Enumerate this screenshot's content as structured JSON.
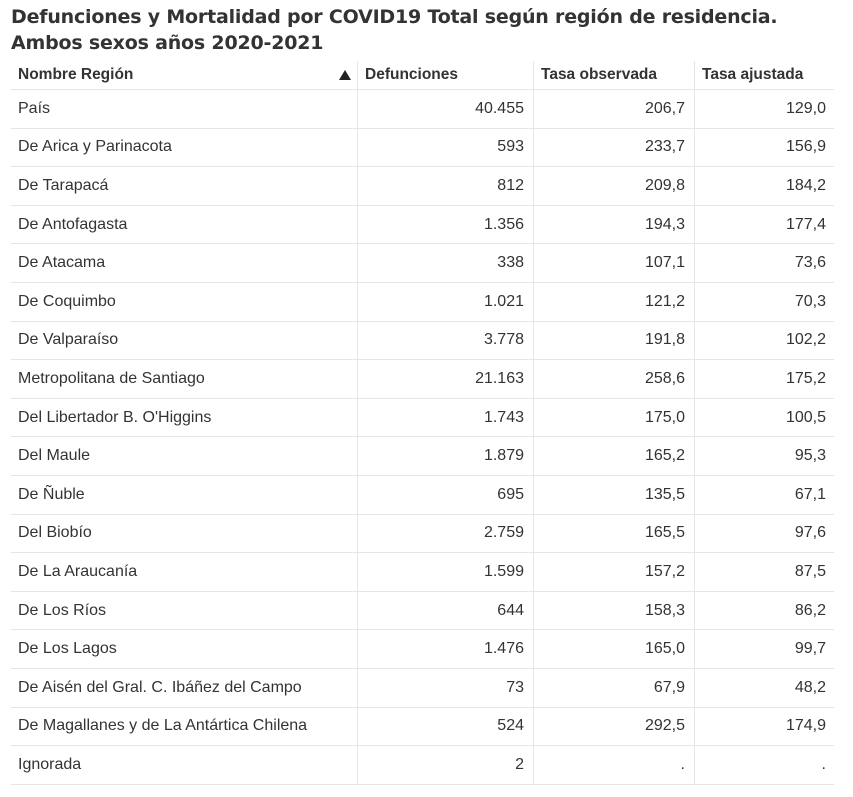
{
  "title": "Defunciones y Mortalidad por COVID19 Total según región de residencia. Ambos sexos años 2020-2021",
  "table": {
    "headers": [
      "Nombre Región",
      "Defunciones",
      "Tasa observada",
      "Tasa ajustada"
    ],
    "sort_icon": "sort-ascending-icon",
    "rows": [
      [
        "País",
        "40.455",
        "206,7",
        "129,0"
      ],
      [
        "De Arica y Parinacota",
        "593",
        "233,7",
        "156,9"
      ],
      [
        "De Tarapacá",
        "812",
        "209,8",
        "184,2"
      ],
      [
        "De Antofagasta",
        "1.356",
        "194,3",
        "177,4"
      ],
      [
        "De Atacama",
        "338",
        "107,1",
        "73,6"
      ],
      [
        "De Coquimbo",
        "1.021",
        "121,2",
        "70,3"
      ],
      [
        "De Valparaíso",
        "3.778",
        "191,8",
        "102,2"
      ],
      [
        "Metropolitana de Santiago",
        "21.163",
        "258,6",
        "175,2"
      ],
      [
        "Del Libertador B. O'Higgins",
        "1.743",
        "175,0",
        "100,5"
      ],
      [
        "Del Maule",
        "1.879",
        "165,2",
        "95,3"
      ],
      [
        "De Ñuble",
        "695",
        "135,5",
        "67,1"
      ],
      [
        "Del Biobío",
        "2.759",
        "165,5",
        "97,6"
      ],
      [
        "De La Araucanía",
        "1.599",
        "157,2",
        "87,5"
      ],
      [
        "De Los Ríos",
        "644",
        "158,3",
        "86,2"
      ],
      [
        "De Los Lagos",
        "1.476",
        "165,0",
        "99,7"
      ],
      [
        "De Aisén del Gral. C. Ibáñez del Campo",
        "73",
        "67,9",
        "48,2"
      ],
      [
        "De Magallanes y de La Antártica Chilena",
        "524",
        "292,5",
        "174,9"
      ],
      [
        "Ignorada",
        "2",
        ".",
        "."
      ]
    ]
  }
}
